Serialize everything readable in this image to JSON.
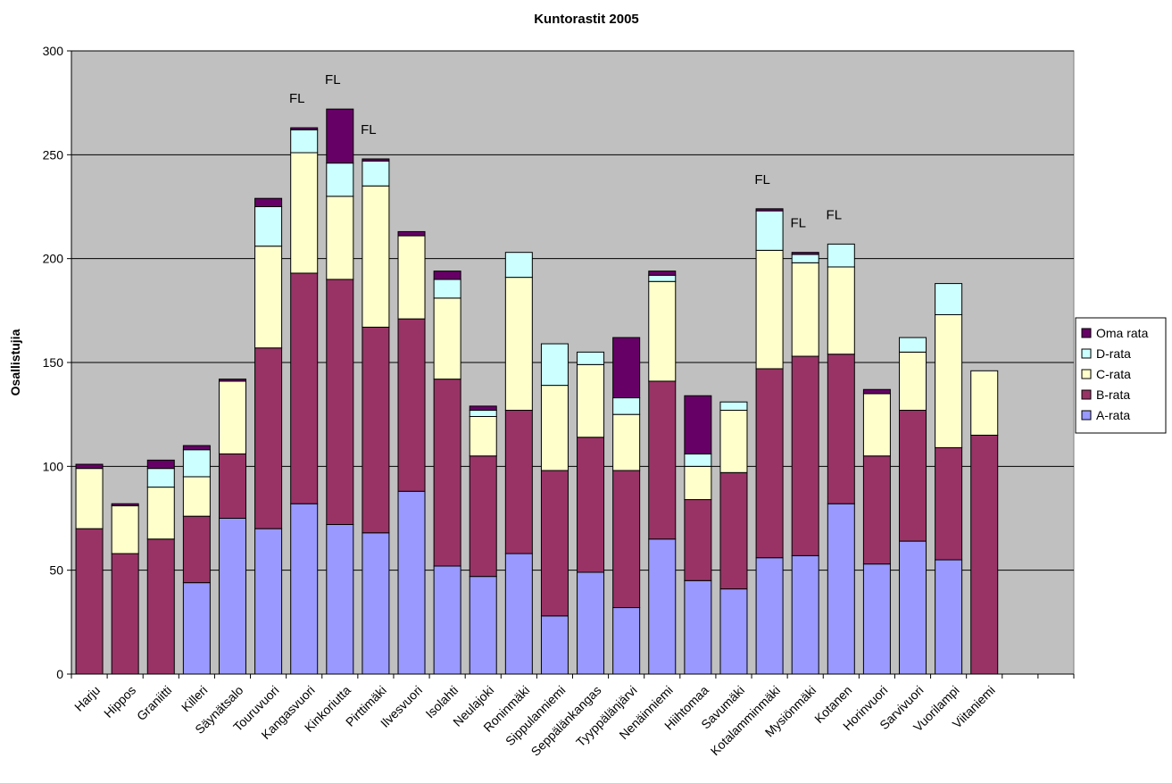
{
  "chart_data": {
    "type": "bar",
    "stacked": true,
    "title": "Kuntorastit 2005",
    "ylabel": "Osallistujia",
    "xlabel": "",
    "ylim": [
      0,
      300
    ],
    "yticks": [
      0,
      50,
      100,
      150,
      200,
      250,
      300
    ],
    "grid": true,
    "legend_position": "right",
    "plot_background": "#c0c0c0",
    "categories": [
      "Harju",
      "Hippos",
      "Graniitti",
      "Killeri",
      "Säynätsalo",
      "Touruvuori",
      "Kangasvuori",
      "Kinkoriutta",
      "Pirttimäki",
      "Ilvesvuori",
      "Isolahti",
      "Neulajoki",
      "Roninmäki",
      "Sippulanniemi",
      "Seppälänkangas",
      "Tyyppälänjärvi",
      "Nenäinniemi",
      "Hiihtomaa",
      "Savumäki",
      "Kotalamminmäki",
      "Mysiönmäki",
      "Kotanen",
      "Horinvuori",
      "Sarvivuori",
      "Vuorilampi",
      "Viitaniemi",
      "",
      ""
    ],
    "series": [
      {
        "name": "A-rata",
        "color": "#9999ff",
        "values": [
          0,
          0,
          0,
          44,
          75,
          70,
          82,
          72,
          68,
          88,
          52,
          47,
          58,
          28,
          49,
          32,
          65,
          45,
          41,
          56,
          57,
          82,
          53,
          64,
          55,
          0,
          0,
          0
        ]
      },
      {
        "name": "B-rata",
        "color": "#993366",
        "values": [
          70,
          58,
          65,
          32,
          31,
          87,
          111,
          118,
          99,
          83,
          90,
          58,
          69,
          70,
          65,
          66,
          76,
          39,
          56,
          91,
          96,
          72,
          52,
          63,
          54,
          115,
          0,
          0
        ]
      },
      {
        "name": "C-rata",
        "color": "#ffffcc",
        "values": [
          29,
          23,
          25,
          19,
          35,
          49,
          58,
          40,
          68,
          40,
          39,
          19,
          64,
          41,
          35,
          27,
          48,
          16,
          30,
          57,
          45,
          42,
          30,
          28,
          64,
          31,
          0,
          0
        ]
      },
      {
        "name": "D-rata",
        "color": "#ccffff",
        "values": [
          0,
          0,
          9,
          13,
          0,
          19,
          11,
          16,
          12,
          0,
          9,
          3,
          12,
          20,
          6,
          8,
          3,
          6,
          4,
          19,
          4,
          11,
          0,
          7,
          15,
          0,
          0,
          0
        ]
      },
      {
        "name": "Oma rata",
        "color": "#660066",
        "values": [
          2,
          1,
          4,
          2,
          1,
          4,
          1,
          26,
          1,
          2,
          4,
          2,
          0,
          0,
          0,
          29,
          2,
          28,
          0,
          1,
          1,
          0,
          2,
          0,
          0,
          0,
          0,
          0
        ]
      }
    ],
    "annotations": [
      {
        "category": "Kangasvuori",
        "text": "FL"
      },
      {
        "category": "Kinkoriutta",
        "text": "FL"
      },
      {
        "category": "Pirttimäki",
        "text": "FL"
      },
      {
        "category": "Kotalamminmäki",
        "text": "FL"
      },
      {
        "category": "Mysiönmäki",
        "text": "FL"
      },
      {
        "category": "Kotanen",
        "text": "FL"
      }
    ]
  }
}
